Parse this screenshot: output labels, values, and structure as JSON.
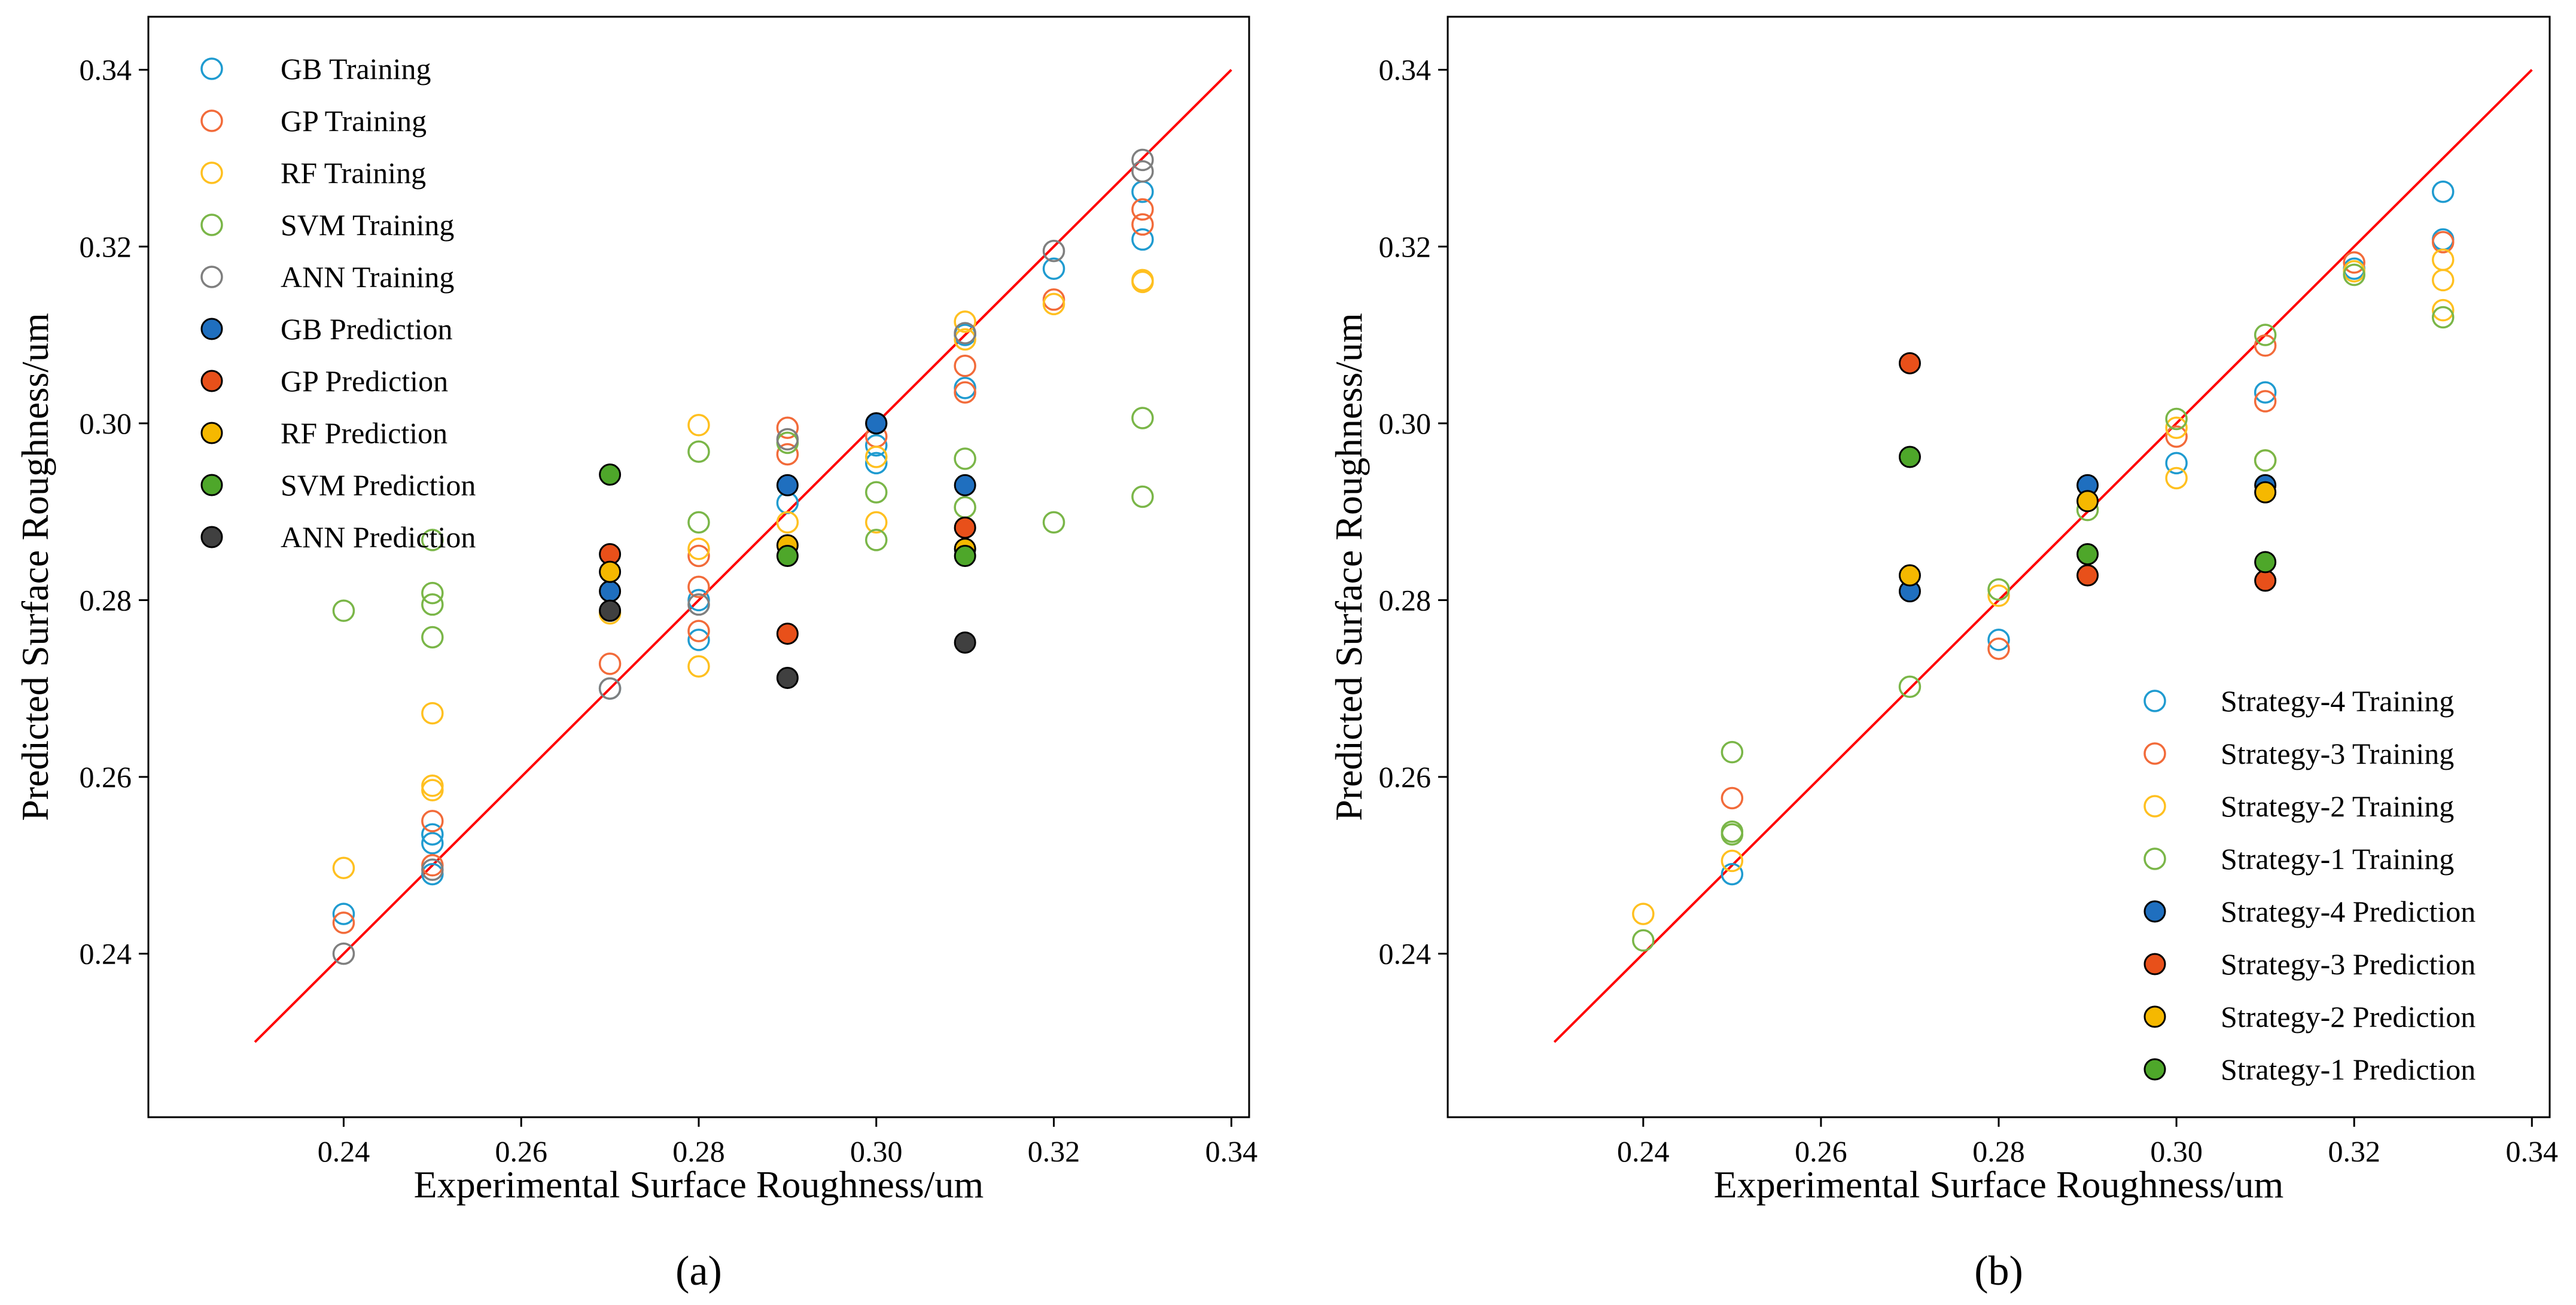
{
  "chart_data": [
    {
      "type": "scatter",
      "panel_label": "(a)",
      "xlabel": "Experimental Surface Roughness/um",
      "ylabel": "Predicted Surface Roughness/um",
      "xlim": [
        0.218,
        0.342
      ],
      "ylim": [
        0.2215,
        0.346
      ],
      "xticks": [
        "0.24",
        "0.26",
        "0.28",
        "0.30",
        "0.32",
        "0.34"
      ],
      "yticks": [
        "0.24",
        "0.26",
        "0.28",
        "0.30",
        "0.32",
        "0.34"
      ],
      "legend_position": "top-left",
      "identity_line": {
        "from": [
          0.23,
          0.23
        ],
        "to": [
          0.34,
          0.34
        ],
        "color": "#ff0000"
      },
      "series": [
        {
          "name": "GB Training",
          "kind": "hollow",
          "color": "#1f9bd0",
          "points": [
            [
              0.24,
              0.2445
            ],
            [
              0.25,
              0.249
            ],
            [
              0.25,
              0.2535
            ],
            [
              0.25,
              0.2525
            ],
            [
              0.27,
              0.27
            ],
            [
              0.28,
              0.2755
            ],
            [
              0.28,
              0.28
            ],
            [
              0.29,
              0.291
            ],
            [
              0.3,
              0.2955
            ],
            [
              0.3,
              0.2975
            ],
            [
              0.31,
              0.31
            ],
            [
              0.31,
              0.304
            ],
            [
              0.32,
              0.3175
            ],
            [
              0.33,
              0.3262
            ],
            [
              0.33,
              0.3208
            ]
          ]
        },
        {
          "name": "GP Training",
          "kind": "hollow",
          "color": "#f26b3a",
          "points": [
            [
              0.24,
              0.2435
            ],
            [
              0.25,
              0.25
            ],
            [
              0.25,
              0.255
            ],
            [
              0.27,
              0.2728
            ],
            [
              0.28,
              0.2815
            ],
            [
              0.28,
              0.2765
            ],
            [
              0.28,
              0.285
            ],
            [
              0.29,
              0.2995
            ],
            [
              0.29,
              0.2965
            ],
            [
              0.3,
              0.2985
            ],
            [
              0.31,
              0.3065
            ],
            [
              0.31,
              0.3035
            ],
            [
              0.32,
              0.314
            ],
            [
              0.33,
              0.3242
            ],
            [
              0.33,
              0.3225
            ]
          ]
        },
        {
          "name": "RF Training",
          "kind": "hollow",
          "color": "#ffc020",
          "points": [
            [
              0.24,
              0.2497
            ],
            [
              0.25,
              0.2672
            ],
            [
              0.25,
              0.259
            ],
            [
              0.25,
              0.2585
            ],
            [
              0.27,
              0.2785
            ],
            [
              0.28,
              0.2998
            ],
            [
              0.28,
              0.2725
            ],
            [
              0.28,
              0.2858
            ],
            [
              0.29,
              0.2888
            ],
            [
              0.3,
              0.2888
            ],
            [
              0.3,
              0.2962
            ],
            [
              0.31,
              0.3115
            ],
            [
              0.31,
              0.3095
            ],
            [
              0.32,
              0.3135
            ],
            [
              0.33,
              0.3162
            ],
            [
              0.33,
              0.316
            ]
          ]
        },
        {
          "name": "SVM Training",
          "kind": "hollow",
          "color": "#7ab648",
          "points": [
            [
              0.24,
              0.2788
            ],
            [
              0.25,
              0.2868
            ],
            [
              0.25,
              0.2808
            ],
            [
              0.25,
              0.2795
            ],
            [
              0.25,
              0.2758
            ],
            [
              0.28,
              0.2968
            ],
            [
              0.28,
              0.2888
            ],
            [
              0.29,
              0.2978
            ],
            [
              0.3,
              0.2922
            ],
            [
              0.3,
              0.2868
            ],
            [
              0.31,
              0.296
            ],
            [
              0.31,
              0.2905
            ],
            [
              0.32,
              0.2888
            ],
            [
              0.33,
              0.3006
            ],
            [
              0.33,
              0.2917
            ]
          ]
        },
        {
          "name": "ANN Training",
          "kind": "hollow",
          "color": "#7f7f7f",
          "points": [
            [
              0.24,
              0.24
            ],
            [
              0.25,
              0.2495
            ],
            [
              0.27,
              0.27
            ],
            [
              0.28,
              0.2795
            ],
            [
              0.29,
              0.2982
            ],
            [
              0.3,
              0.3
            ],
            [
              0.31,
              0.3102
            ],
            [
              0.32,
              0.3195
            ],
            [
              0.33,
              0.3298
            ],
            [
              0.33,
              0.3285
            ]
          ]
        },
        {
          "name": "GB Prediction",
          "kind": "filled",
          "color": "#1f6fbf",
          "points": [
            [
              0.27,
              0.281
            ],
            [
              0.29,
              0.293
            ],
            [
              0.3,
              0.3
            ],
            [
              0.31,
              0.293
            ]
          ]
        },
        {
          "name": "GP Prediction",
          "kind": "filled",
          "color": "#e8501a",
          "points": [
            [
              0.27,
              0.2852
            ],
            [
              0.29,
              0.2762
            ],
            [
              0.31,
              0.2882
            ]
          ]
        },
        {
          "name": "RF Prediction",
          "kind": "filled",
          "color": "#f5b800",
          "points": [
            [
              0.27,
              0.2832
            ],
            [
              0.29,
              0.2862
            ],
            [
              0.31,
              0.2858
            ]
          ]
        },
        {
          "name": "SVM Prediction",
          "kind": "filled",
          "color": "#4ea72a",
          "points": [
            [
              0.27,
              0.2942
            ],
            [
              0.29,
              0.285
            ],
            [
              0.31,
              0.285
            ]
          ]
        },
        {
          "name": "ANN Prediction",
          "kind": "filled",
          "color": "#404040",
          "points": [
            [
              0.27,
              0.2788
            ],
            [
              0.29,
              0.2712
            ],
            [
              0.31,
              0.2752
            ]
          ]
        }
      ]
    },
    {
      "type": "scatter",
      "panel_label": "(b)",
      "xlabel": "Experimental Surface Roughness/um",
      "ylabel": "Predicted Surface Roughness/um",
      "xlim": [
        0.218,
        0.342
      ],
      "ylim": [
        0.2215,
        0.346
      ],
      "xticks": [
        "0.24",
        "0.26",
        "0.28",
        "0.30",
        "0.32",
        "0.34"
      ],
      "yticks": [
        "0.24",
        "0.26",
        "0.28",
        "0.30",
        "0.32",
        "0.34"
      ],
      "legend_position": "bottom-right",
      "identity_line": {
        "from": [
          0.23,
          0.23
        ],
        "to": [
          0.34,
          0.34
        ],
        "color": "#ff0000"
      },
      "series": [
        {
          "name": "Strategy-4 Training",
          "kind": "hollow",
          "color": "#1f9bd0",
          "points": [
            [
              0.25,
              0.249
            ],
            [
              0.28,
              0.2755
            ],
            [
              0.3,
              0.2955
            ],
            [
              0.31,
              0.3035
            ],
            [
              0.32,
              0.3175
            ],
            [
              0.33,
              0.3262
            ],
            [
              0.33,
              0.3208
            ]
          ]
        },
        {
          "name": "Strategy-3 Training",
          "kind": "hollow",
          "color": "#f26b3a",
          "points": [
            [
              0.25,
              0.2576
            ],
            [
              0.28,
              0.2745
            ],
            [
              0.3,
              0.2985
            ],
            [
              0.31,
              0.3025
            ],
            [
              0.31,
              0.3088
            ],
            [
              0.32,
              0.3182
            ],
            [
              0.33,
              0.3205
            ]
          ]
        },
        {
          "name": "Strategy-2 Training",
          "kind": "hollow",
          "color": "#ffc020",
          "points": [
            [
              0.24,
              0.2445
            ],
            [
              0.25,
              0.2505
            ],
            [
              0.28,
              0.2805
            ],
            [
              0.3,
              0.2938
            ],
            [
              0.3,
              0.2995
            ],
            [
              0.31,
              0.2958
            ],
            [
              0.32,
              0.3172
            ],
            [
              0.33,
              0.3185
            ],
            [
              0.33,
              0.3128
            ],
            [
              0.33,
              0.3162
            ]
          ]
        },
        {
          "name": "Strategy-1 Training",
          "kind": "hollow",
          "color": "#7ab648",
          "points": [
            [
              0.24,
              0.2415
            ],
            [
              0.25,
              0.2628
            ],
            [
              0.25,
              0.2538
            ],
            [
              0.25,
              0.2535
            ],
            [
              0.27,
              0.2702
            ],
            [
              0.28,
              0.2812
            ],
            [
              0.29,
              0.2902
            ],
            [
              0.3,
              0.3005
            ],
            [
              0.31,
              0.31
            ],
            [
              0.31,
              0.2958
            ],
            [
              0.32,
              0.3168
            ],
            [
              0.33,
              0.312
            ]
          ]
        },
        {
          "name": "Strategy-4 Prediction",
          "kind": "filled",
          "color": "#1f6fbf",
          "points": [
            [
              0.27,
              0.281
            ],
            [
              0.29,
              0.293
            ],
            [
              0.31,
              0.293
            ]
          ]
        },
        {
          "name": "Strategy-3 Prediction",
          "kind": "filled",
          "color": "#e8501a",
          "points": [
            [
              0.27,
              0.3068
            ],
            [
              0.29,
              0.2828
            ],
            [
              0.31,
              0.2822
            ]
          ]
        },
        {
          "name": "Strategy-2 Prediction",
          "kind": "filled",
          "color": "#f5b800",
          "points": [
            [
              0.27,
              0.2828
            ],
            [
              0.29,
              0.2912
            ],
            [
              0.31,
              0.2922
            ]
          ]
        },
        {
          "name": "Strategy-1 Prediction",
          "kind": "filled",
          "color": "#4ea72a",
          "points": [
            [
              0.27,
              0.2962
            ],
            [
              0.29,
              0.2852
            ],
            [
              0.31,
              0.2843
            ]
          ]
        }
      ]
    }
  ]
}
